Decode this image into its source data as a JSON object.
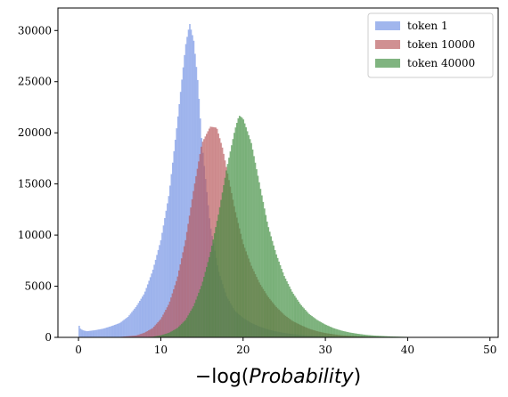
{
  "chart_data": {
    "type": "histogram",
    "xlabel_prefix": "−log(",
    "xlabel_var": "Probability",
    "xlabel_suffix": ")",
    "ylabel": "",
    "xlim": [
      -2.5,
      51
    ],
    "ylim": [
      0,
      32200
    ],
    "x_ticks": [
      0,
      10,
      20,
      30,
      40,
      50
    ],
    "y_ticks": [
      0,
      5000,
      10000,
      15000,
      20000,
      25000,
      30000
    ],
    "grid": false,
    "legend_placement": "top-right",
    "bin_width": 0.16,
    "series": [
      {
        "name": "token 1",
        "color": "#6f8fe3",
        "alpha": 0.65,
        "profile": [
          [
            0,
            1400
          ],
          [
            0.15,
            900
          ],
          [
            0.5,
            700
          ],
          [
            1,
            600
          ],
          [
            2,
            700
          ],
          [
            3,
            850
          ],
          [
            4,
            1100
          ],
          [
            5,
            1400
          ],
          [
            6,
            2000
          ],
          [
            7,
            3000
          ],
          [
            8,
            4300
          ],
          [
            9,
            6500
          ],
          [
            10,
            9500
          ],
          [
            11,
            14000
          ],
          [
            12,
            21000
          ],
          [
            13,
            28500
          ],
          [
            13.5,
            30700
          ],
          [
            14,
            29000
          ],
          [
            14.5,
            25000
          ],
          [
            15,
            19000
          ],
          [
            16,
            11000
          ],
          [
            17,
            6500
          ],
          [
            18,
            4000
          ],
          [
            19,
            2600
          ],
          [
            20,
            1900
          ],
          [
            21,
            1400
          ],
          [
            22,
            1050
          ],
          [
            23,
            780
          ],
          [
            24,
            580
          ],
          [
            25,
            430
          ],
          [
            26,
            320
          ],
          [
            27,
            240
          ],
          [
            28,
            180
          ],
          [
            29,
            140
          ],
          [
            30,
            100
          ],
          [
            31,
            70
          ],
          [
            32,
            50
          ],
          [
            34,
            25
          ],
          [
            36,
            12
          ],
          [
            38,
            6
          ],
          [
            40,
            3
          ],
          [
            44,
            0
          ]
        ]
      },
      {
        "name": "token 10000",
        "color": "#b75458",
        "alpha": 0.65,
        "profile": [
          [
            3,
            0
          ],
          [
            5,
            40
          ],
          [
            7,
            180
          ],
          [
            8,
            450
          ],
          [
            9,
            900
          ],
          [
            10,
            1800
          ],
          [
            11,
            3300
          ],
          [
            12,
            5800
          ],
          [
            13,
            9500
          ],
          [
            14,
            14500
          ],
          [
            15,
            19000
          ],
          [
            16,
            20600
          ],
          [
            16.8,
            20500
          ],
          [
            17.5,
            18500
          ],
          [
            18,
            16500
          ],
          [
            19,
            12500
          ],
          [
            20,
            9200
          ],
          [
            21,
            7000
          ],
          [
            22,
            5300
          ],
          [
            23,
            4000
          ],
          [
            24,
            3000
          ],
          [
            25,
            2200
          ],
          [
            26,
            1600
          ],
          [
            27,
            1200
          ],
          [
            28,
            850
          ],
          [
            29,
            600
          ],
          [
            30,
            420
          ],
          [
            31,
            300
          ],
          [
            32,
            200
          ],
          [
            34,
            100
          ],
          [
            36,
            50
          ],
          [
            38,
            25
          ],
          [
            40,
            12
          ],
          [
            42,
            5
          ],
          [
            45,
            0
          ]
        ]
      },
      {
        "name": "token 40000",
        "color": "#3c8c3c",
        "alpha": 0.65,
        "profile": [
          [
            7,
            0
          ],
          [
            9,
            60
          ],
          [
            10,
            200
          ],
          [
            11,
            450
          ],
          [
            12,
            900
          ],
          [
            13,
            1700
          ],
          [
            14,
            3100
          ],
          [
            15,
            5200
          ],
          [
            16,
            8200
          ],
          [
            17,
            12000
          ],
          [
            18,
            16500
          ],
          [
            19,
            20300
          ],
          [
            19.5,
            21700
          ],
          [
            20,
            21400
          ],
          [
            21,
            19000
          ],
          [
            22,
            15000
          ],
          [
            23,
            11000
          ],
          [
            24,
            8200
          ],
          [
            25,
            6000
          ],
          [
            26,
            4400
          ],
          [
            27,
            3200
          ],
          [
            28,
            2300
          ],
          [
            29,
            1700
          ],
          [
            30,
            1250
          ],
          [
            31,
            900
          ],
          [
            32,
            650
          ],
          [
            33,
            470
          ],
          [
            34,
            340
          ],
          [
            35,
            240
          ],
          [
            36,
            170
          ],
          [
            38,
            90
          ],
          [
            40,
            45
          ],
          [
            42,
            22
          ],
          [
            44,
            10
          ],
          [
            46,
            5
          ],
          [
            49,
            0
          ]
        ]
      }
    ]
  }
}
